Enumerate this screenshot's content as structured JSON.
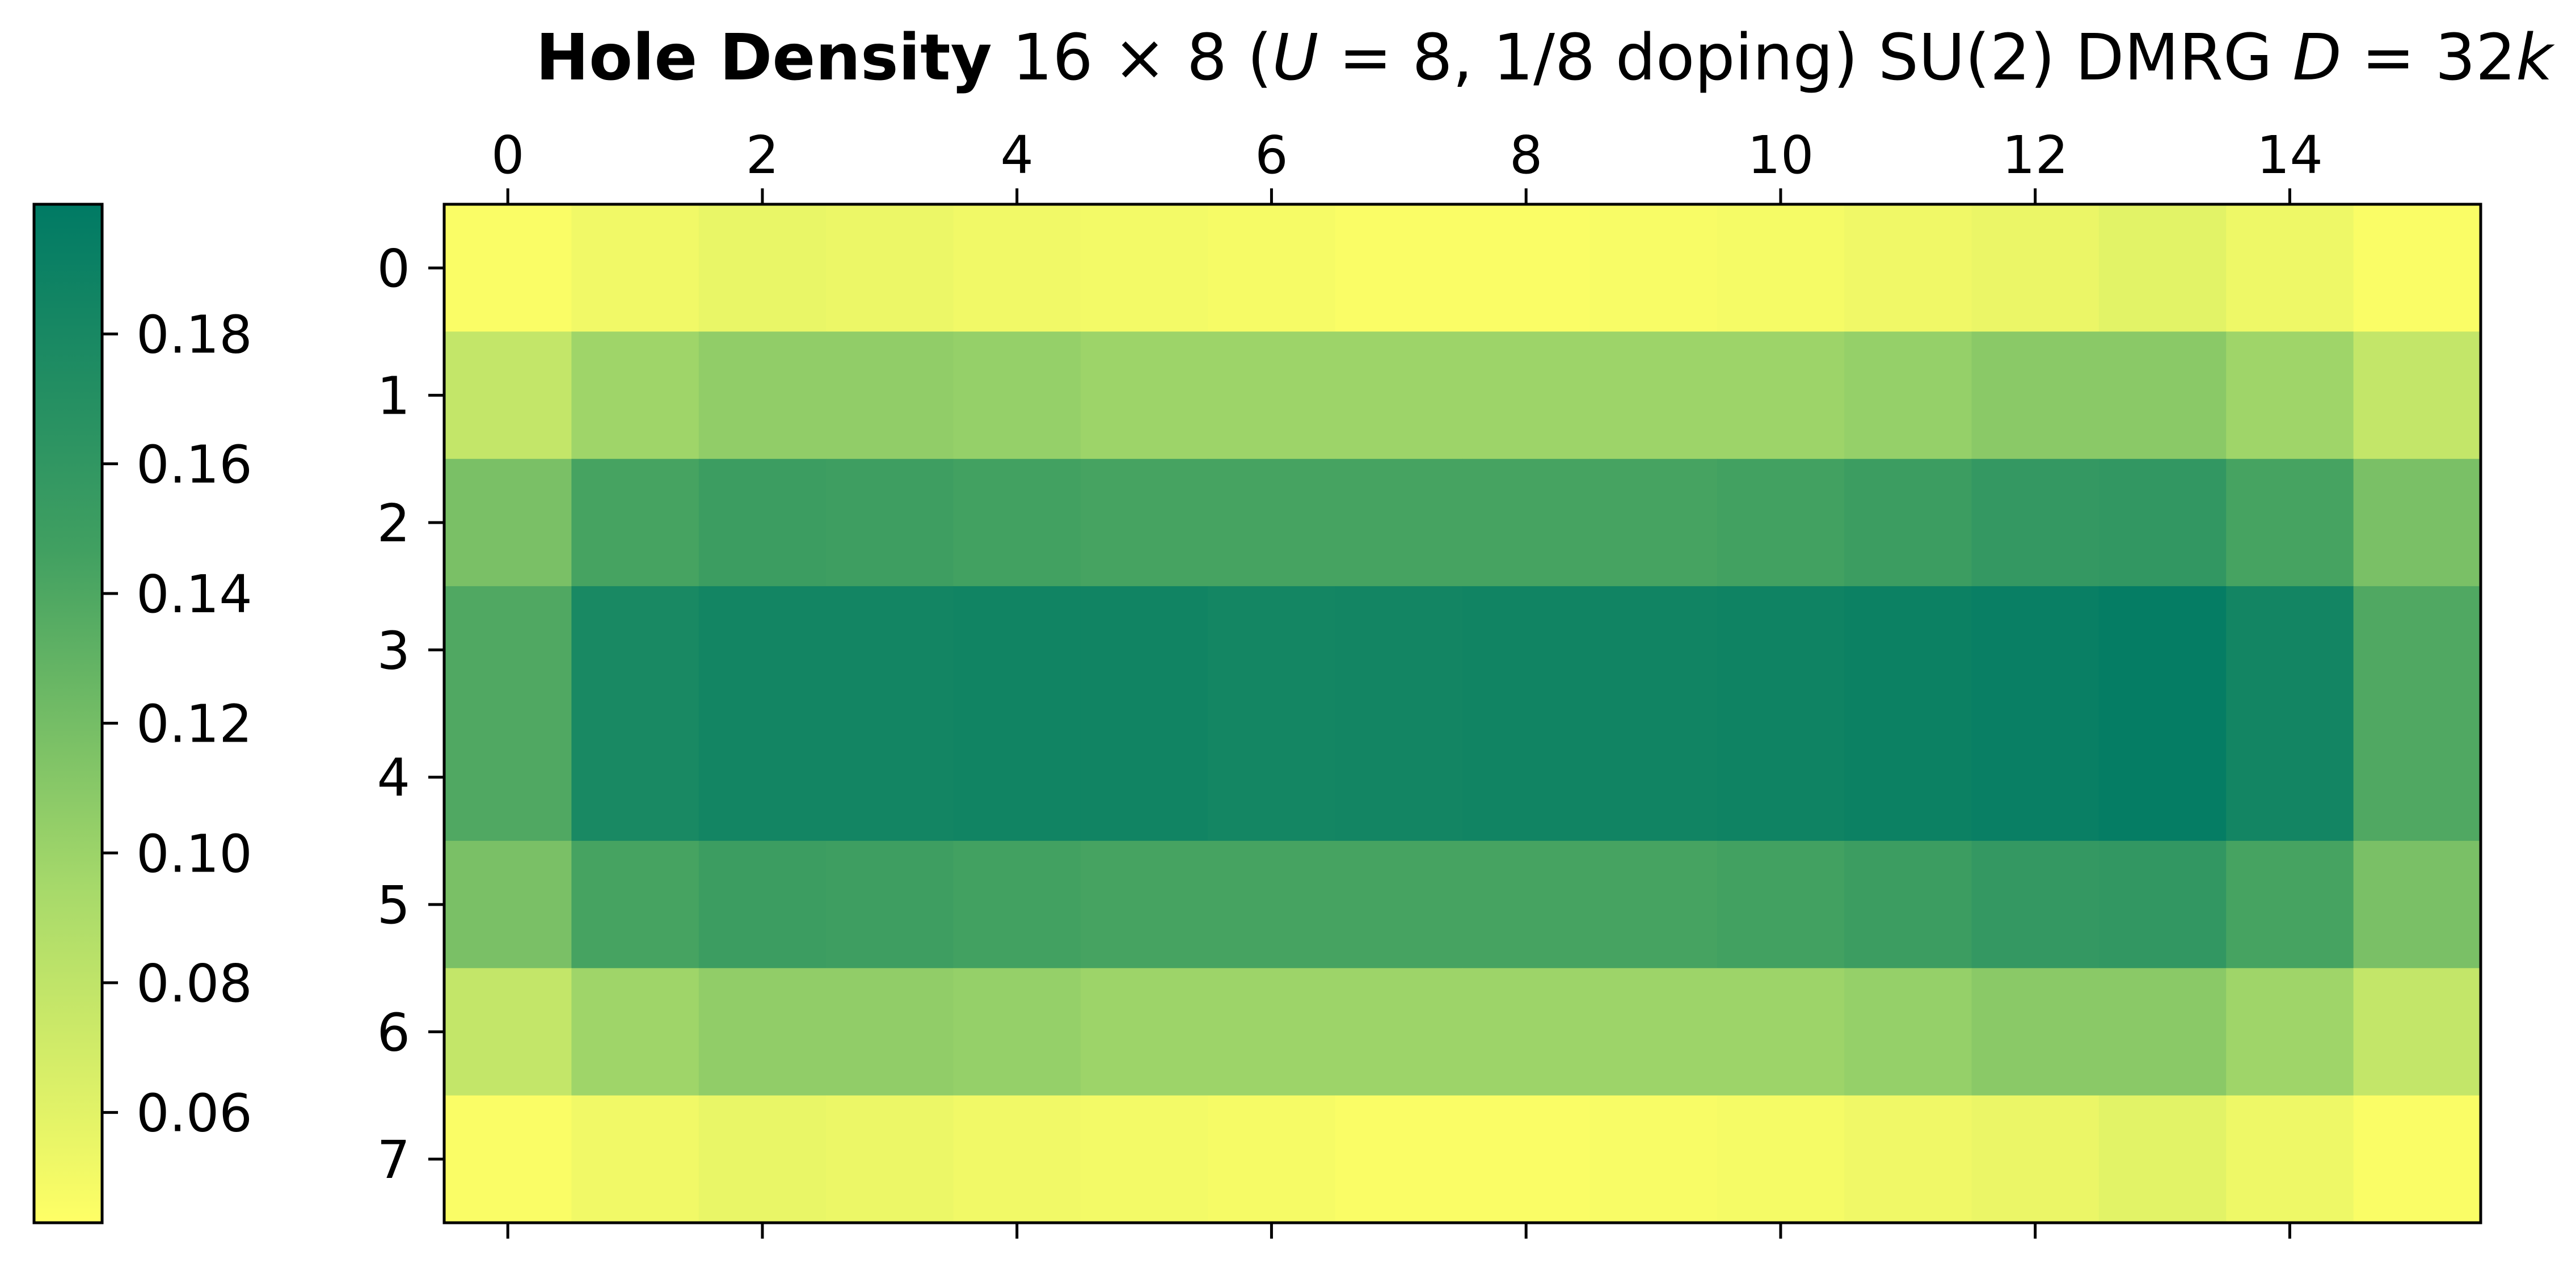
{
  "chart_data": {
    "type": "heatmap",
    "title": {
      "bold": "Hole Density",
      "rest_parts": [
        {
          "text": " 16 × 8 (",
          "italic": false
        },
        {
          "text": "U",
          "italic": true
        },
        {
          "text": " = 8, 1/8 doping) SU(2) DMRG ",
          "italic": false
        },
        {
          "text": "D",
          "italic": true
        },
        {
          "text": " = 32",
          "italic": false
        },
        {
          "text": "k",
          "italic": true
        }
      ]
    },
    "xlabel": "",
    "ylabel": "",
    "x_ticks": [
      "0",
      "2",
      "4",
      "6",
      "8",
      "10",
      "12",
      "14"
    ],
    "y_ticks": [
      "0",
      "1",
      "2",
      "3",
      "4",
      "5",
      "6",
      "7"
    ],
    "n_cols": 16,
    "n_rows": 8,
    "colormap": [
      "#ffff66",
      "#a6d96a",
      "#41a061",
      "#007a64"
    ],
    "colorbar": {
      "position": "left",
      "range": [
        0.043,
        0.2
      ],
      "ticks": [
        "0.06",
        "0.08",
        "0.10",
        "0.12",
        "0.14",
        "0.16",
        "0.18"
      ]
    },
    "values": [
      [
        0.046,
        0.051,
        0.056,
        0.054,
        0.051,
        0.05,
        0.048,
        0.046,
        0.046,
        0.047,
        0.049,
        0.052,
        0.055,
        0.06,
        0.053,
        0.046
      ],
      [
        0.078,
        0.099,
        0.106,
        0.106,
        0.104,
        0.1,
        0.1,
        0.1,
        0.1,
        0.1,
        0.1,
        0.104,
        0.11,
        0.11,
        0.099,
        0.078
      ],
      [
        0.118,
        0.145,
        0.152,
        0.15,
        0.147,
        0.145,
        0.145,
        0.145,
        0.145,
        0.145,
        0.147,
        0.152,
        0.158,
        0.16,
        0.145,
        0.118
      ],
      [
        0.14,
        0.18,
        0.185,
        0.185,
        0.186,
        0.186,
        0.184,
        0.185,
        0.186,
        0.186,
        0.188,
        0.19,
        0.193,
        0.196,
        0.185,
        0.14
      ],
      [
        0.14,
        0.18,
        0.185,
        0.185,
        0.186,
        0.186,
        0.184,
        0.185,
        0.186,
        0.186,
        0.188,
        0.19,
        0.193,
        0.196,
        0.185,
        0.14
      ],
      [
        0.118,
        0.145,
        0.152,
        0.15,
        0.147,
        0.145,
        0.145,
        0.145,
        0.145,
        0.145,
        0.147,
        0.152,
        0.158,
        0.16,
        0.145,
        0.118
      ],
      [
        0.078,
        0.099,
        0.106,
        0.106,
        0.104,
        0.1,
        0.1,
        0.1,
        0.1,
        0.1,
        0.1,
        0.104,
        0.11,
        0.11,
        0.099,
        0.078
      ],
      [
        0.046,
        0.051,
        0.056,
        0.054,
        0.051,
        0.05,
        0.048,
        0.046,
        0.046,
        0.047,
        0.049,
        0.052,
        0.055,
        0.06,
        0.053,
        0.046
      ]
    ]
  }
}
